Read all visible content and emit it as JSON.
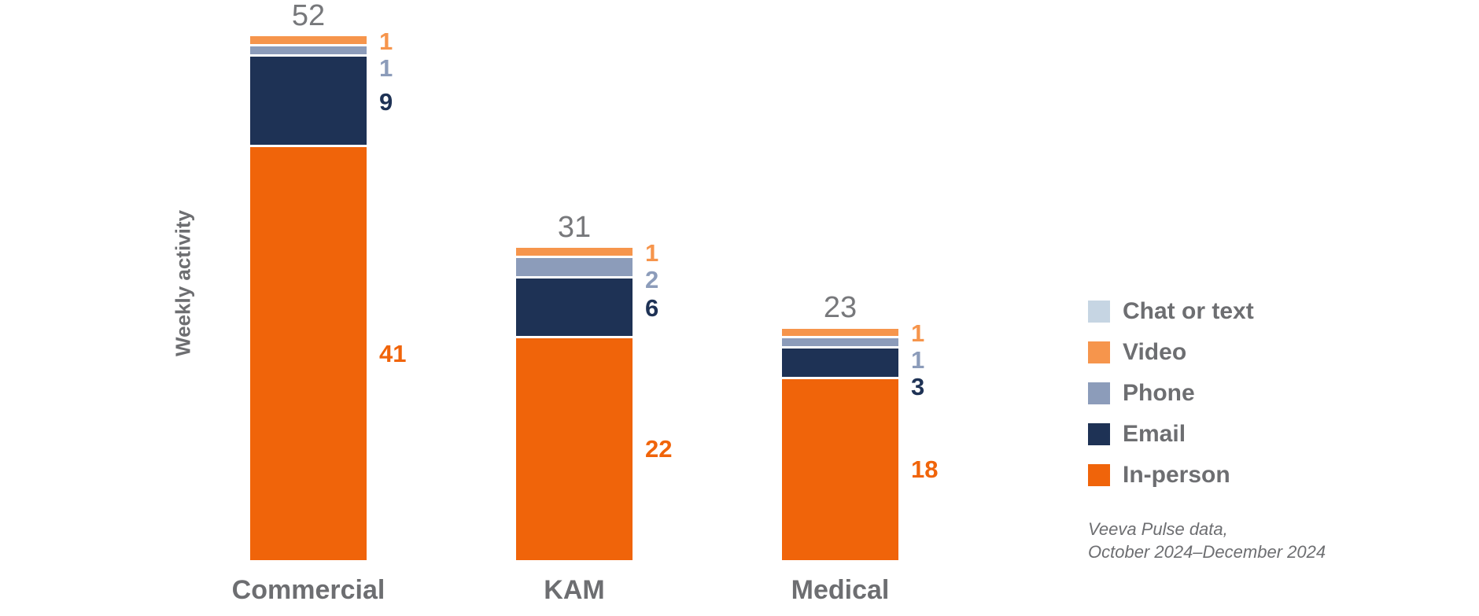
{
  "chart_data": {
    "type": "bar",
    "stacked": true,
    "ylabel": "Weekly activity",
    "categories": [
      "Commercial",
      "KAM",
      "Medical"
    ],
    "totals": [
      52,
      31,
      23
    ],
    "series": [
      {
        "name": "Video",
        "color": "#F6954C",
        "values": [
          1,
          1,
          1
        ]
      },
      {
        "name": "Phone",
        "color": "#8C9CBA",
        "values": [
          1,
          2,
          1
        ]
      },
      {
        "name": "Email",
        "color": "#1E3255",
        "values": [
          9,
          6,
          3
        ]
      },
      {
        "name": "In-person",
        "color": "#F0640A",
        "values": [
          41,
          22,
          18
        ]
      }
    ],
    "legend": [
      {
        "label": "Chat or text",
        "color": "#C6D5E3"
      },
      {
        "label": "Video",
        "color": "#F6954C"
      },
      {
        "label": "Phone",
        "color": "#8C9CBA"
      },
      {
        "label": "Email",
        "color": "#1E3255"
      },
      {
        "label": "In-person",
        "color": "#F0640A"
      }
    ],
    "legend_position": "right",
    "grid": false,
    "axes_hidden": true,
    "source_note_line1": "Veeva Pulse data,",
    "source_note_line2": "October 2024–December 2024"
  },
  "colors": {
    "total_label_gray": "#77787B",
    "text_gray": "#6D6E71",
    "background": "#FFFFFF"
  }
}
